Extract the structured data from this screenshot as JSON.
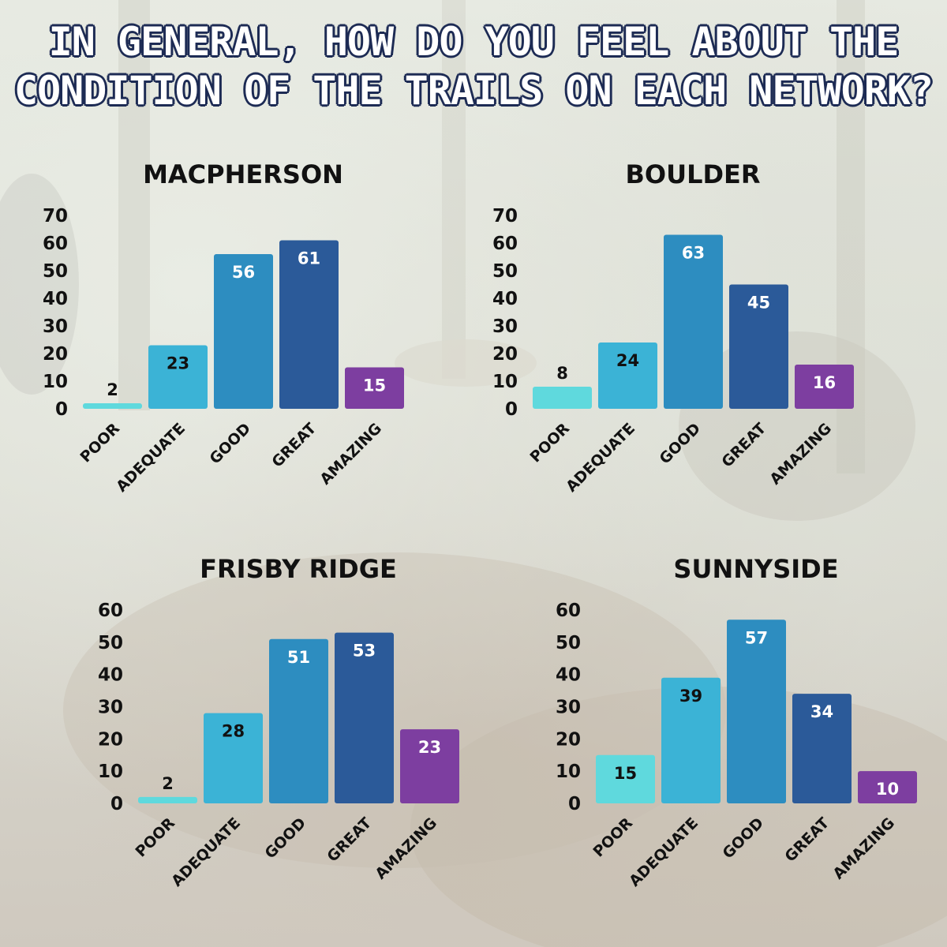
{
  "title_lines": [
    "IN GENERAL, HOW DO YOU FEEL ABOUT THE",
    "CONDITION OF THE TRAILS ON EACH NETWORK?"
  ],
  "colors": {
    "title_text": "#ffffff",
    "title_outline": "#1d2b54",
    "poor": "#5fd9dd",
    "adequate": "#3bb3d6",
    "good": "#2d8dc0",
    "great": "#2b5a99",
    "amazing": "#7d3ea0"
  },
  "chart_data": [
    {
      "type": "bar",
      "title": "MACPHERSON",
      "categories": [
        "POOR",
        "ADEQUATE",
        "GOOD",
        "GREAT",
        "AMAZING"
      ],
      "values": [
        2,
        23,
        56,
        61,
        15
      ],
      "yticks": [
        0,
        10,
        20,
        30,
        40,
        50,
        60,
        70
      ],
      "ylim": [
        0,
        70
      ],
      "xlabel": "",
      "ylabel": "",
      "grid": false
    },
    {
      "type": "bar",
      "title": "BOULDER",
      "categories": [
        "POOR",
        "ADEQUATE",
        "GOOD",
        "GREAT",
        "AMAZING"
      ],
      "values": [
        8,
        24,
        63,
        45,
        16
      ],
      "yticks": [
        0,
        10,
        20,
        30,
        40,
        50,
        60,
        70
      ],
      "ylim": [
        0,
        70
      ],
      "xlabel": "",
      "ylabel": "",
      "grid": false
    },
    {
      "type": "bar",
      "title": "FRISBY RIDGE",
      "categories": [
        "POOR",
        "ADEQUATE",
        "GOOD",
        "GREAT",
        "AMAZING"
      ],
      "values": [
        2,
        28,
        51,
        53,
        23
      ],
      "yticks": [
        0,
        10,
        20,
        30,
        40,
        50,
        60
      ],
      "ylim": [
        0,
        60
      ],
      "xlabel": "",
      "ylabel": "",
      "grid": false
    },
    {
      "type": "bar",
      "title": "SUNNYSIDE",
      "categories": [
        "POOR",
        "ADEQUATE",
        "GOOD",
        "GREAT",
        "AMAZING"
      ],
      "values": [
        15,
        39,
        57,
        34,
        10
      ],
      "yticks": [
        0,
        10,
        20,
        30,
        40,
        50,
        60
      ],
      "ylim": [
        0,
        60
      ],
      "xlabel": "",
      "ylabel": "",
      "grid": false
    }
  ]
}
